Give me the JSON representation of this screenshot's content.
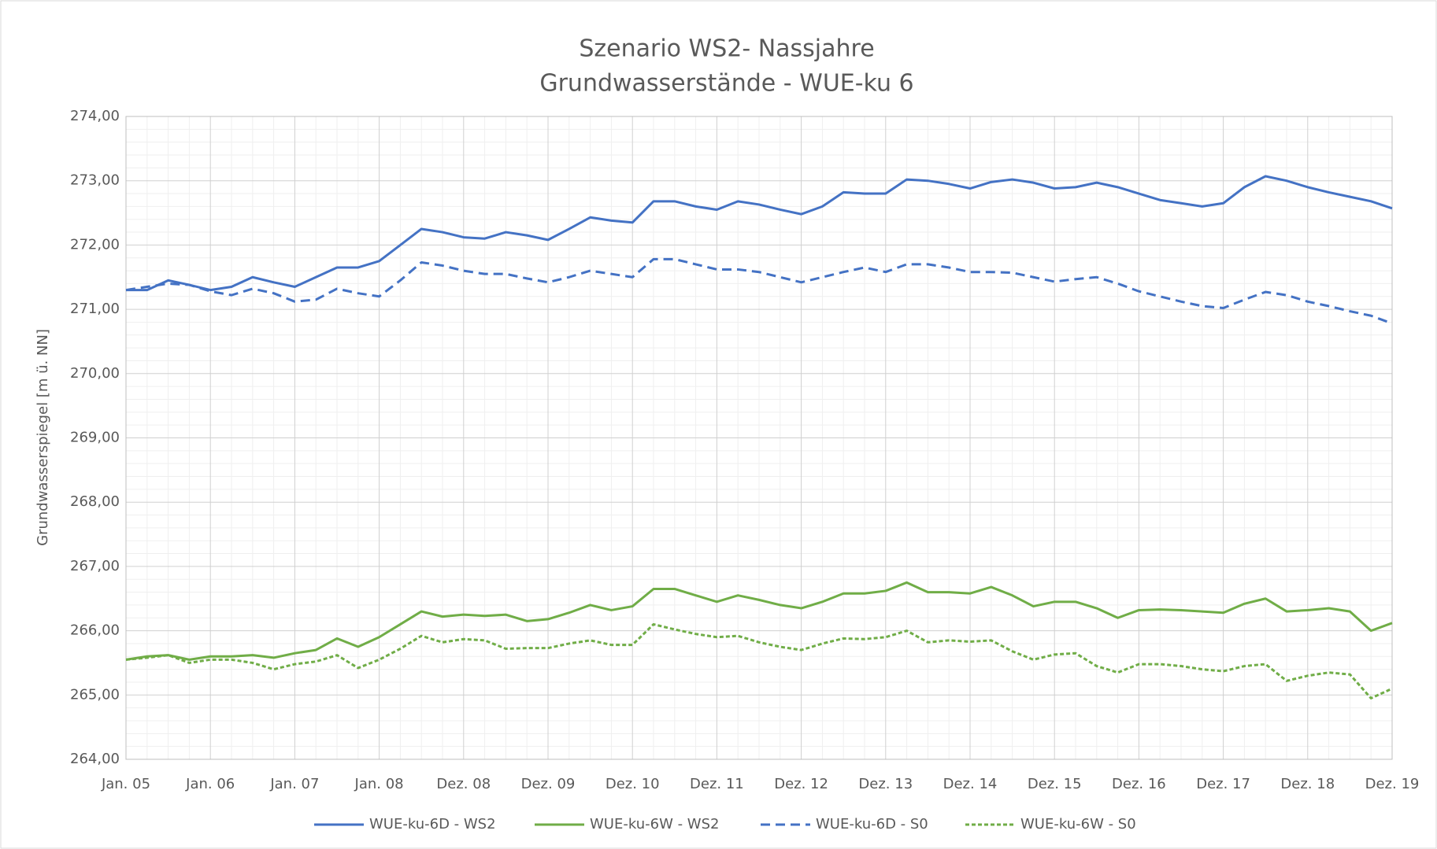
{
  "chart_data": {
    "type": "line",
    "title": "Szenario WS2- Nassjahre",
    "subtitle": "Grundwasserstände - WUE-ku 6",
    "y_label": "Grundwasserspiegel [m ü. NN]",
    "categories": [
      "Jan. 05",
      null,
      null,
      null,
      "Jan. 06",
      null,
      null,
      null,
      "Jan. 07",
      null,
      null,
      null,
      "Jan. 08",
      null,
      null,
      null,
      "Dez. 08",
      null,
      null,
      null,
      "Dez. 09",
      null,
      null,
      null,
      "Dez. 10",
      null,
      null,
      null,
      "Dez. 11",
      null,
      null,
      null,
      "Dez. 12",
      null,
      null,
      null,
      "Dez. 13",
      null,
      null,
      null,
      "Dez. 14",
      null,
      null,
      null,
      "Dez. 15",
      null,
      null,
      null,
      "Dez. 16",
      null,
      null,
      null,
      "Dez. 17",
      null,
      null,
      null,
      "Dez. 18",
      null,
      null,
      null,
      "Dez. 19"
    ],
    "series": [
      {
        "name": "WUE-ku-6D - WS2",
        "color": "#4472c4",
        "dashed": false,
        "values": [
          271.3,
          271.3,
          271.45,
          271.38,
          271.3,
          271.35,
          271.5,
          271.42,
          271.35,
          271.5,
          271.65,
          271.65,
          271.75,
          272.0,
          272.25,
          272.2,
          272.12,
          272.1,
          272.2,
          272.15,
          272.08,
          272.25,
          272.43,
          272.38,
          272.35,
          272.68,
          272.68,
          272.6,
          272.55,
          272.68,
          272.63,
          272.55,
          272.48,
          272.6,
          272.82,
          272.8,
          272.8,
          273.02,
          273.0,
          272.95,
          272.88,
          272.98,
          273.02,
          272.97,
          272.88,
          272.9,
          272.97,
          272.9,
          272.8,
          272.7,
          272.65,
          272.6,
          272.65,
          272.9,
          273.07,
          273.0,
          272.9,
          272.82,
          272.75,
          272.68,
          272.57
        ]
      },
      {
        "name": "WUE-ku-6W - WS2",
        "color": "#70ad47",
        "dashed": false,
        "values": [
          265.55,
          265.6,
          265.62,
          265.55,
          265.6,
          265.6,
          265.62,
          265.58,
          265.65,
          265.7,
          265.88,
          265.75,
          265.9,
          266.1,
          266.3,
          266.22,
          266.25,
          266.23,
          266.25,
          266.15,
          266.18,
          266.28,
          266.4,
          266.32,
          266.38,
          266.65,
          266.65,
          266.55,
          266.45,
          266.55,
          266.48,
          266.4,
          266.35,
          266.45,
          266.58,
          266.58,
          266.62,
          266.75,
          266.6,
          266.6,
          266.58,
          266.68,
          266.55,
          266.38,
          266.45,
          266.45,
          266.35,
          266.2,
          266.32,
          266.33,
          266.32,
          266.3,
          266.28,
          266.42,
          266.5,
          266.3,
          266.32,
          266.35,
          266.3,
          266.0,
          266.12
        ]
      },
      {
        "name": "WUE-ku-6D - S0",
        "color": "#4472c4",
        "dashed": true,
        "values": [
          271.3,
          271.35,
          271.4,
          271.38,
          271.28,
          271.22,
          271.32,
          271.25,
          271.12,
          271.15,
          271.32,
          271.25,
          271.2,
          271.45,
          271.73,
          271.68,
          271.6,
          271.55,
          271.55,
          271.48,
          271.42,
          271.5,
          271.6,
          271.55,
          271.5,
          271.78,
          271.78,
          271.7,
          271.62,
          271.62,
          271.58,
          271.5,
          271.42,
          271.5,
          271.58,
          271.65,
          271.58,
          271.7,
          271.7,
          271.65,
          271.58,
          271.58,
          271.57,
          271.5,
          271.43,
          271.47,
          271.5,
          271.4,
          271.28,
          271.2,
          271.12,
          271.05,
          271.02,
          271.15,
          271.27,
          271.22,
          271.12,
          271.05,
          270.97,
          270.9,
          270.78
        ]
      },
      {
        "name": "WUE-ku-6W - S0",
        "color": "#70ad47",
        "dashed": true,
        "values": [
          265.55,
          265.58,
          265.62,
          265.5,
          265.55,
          265.55,
          265.5,
          265.4,
          265.48,
          265.52,
          265.62,
          265.42,
          265.55,
          265.72,
          265.92,
          265.82,
          265.87,
          265.85,
          265.72,
          265.73,
          265.73,
          265.8,
          265.85,
          265.78,
          265.78,
          266.1,
          266.02,
          265.95,
          265.9,
          265.92,
          265.82,
          265.75,
          265.7,
          265.8,
          265.88,
          265.87,
          265.9,
          266.0,
          265.82,
          265.85,
          265.83,
          265.85,
          265.68,
          265.55,
          265.63,
          265.65,
          265.45,
          265.35,
          265.48,
          265.48,
          265.45,
          265.4,
          265.37,
          265.45,
          265.48,
          265.22,
          265.3,
          265.35,
          265.32,
          264.95,
          265.1
        ]
      }
    ],
    "ylim": [
      264,
      274
    ],
    "yticks": [
      {
        "value": 264,
        "label": "264,00"
      },
      {
        "value": 265,
        "label": "265,00"
      },
      {
        "value": 266,
        "label": "266,00"
      },
      {
        "value": 267,
        "label": "267,00"
      },
      {
        "value": 268,
        "label": "268,00"
      },
      {
        "value": 269,
        "label": "269,00"
      },
      {
        "value": 270,
        "label": "270,00"
      },
      {
        "value": 271,
        "label": "271,00"
      },
      {
        "value": 272,
        "label": "272,00"
      },
      {
        "value": 273,
        "label": "273,00"
      },
      {
        "value": 274,
        "label": "274,00"
      }
    ],
    "grid": true,
    "legend": "bottom"
  }
}
